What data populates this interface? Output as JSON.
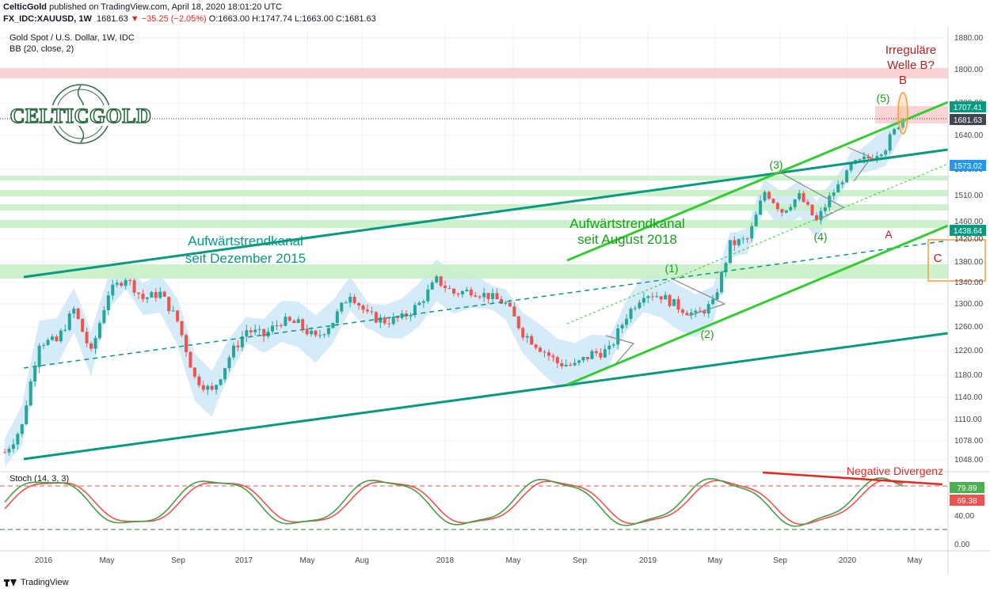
{
  "header": {
    "publisher": "CelticGold",
    "published_on": "published on TradingView.com, April 18, 2020 18:01:20 UTC",
    "symbol": "FX_IDC:XAUUSD, 1W",
    "last": "1681.63",
    "change": "▼ −35.25 (−2.05%)",
    "ohlc": "O:1663.00 H:1747.74 L:1663.00 C:1681.63"
  },
  "legend": {
    "title": "Gold Spot / U.S. Dollar, 1W, IDC",
    "bb": "BB (20, close, 2)",
    "stoch": "Stoch (14, 3, 3)"
  },
  "logo": {
    "text": "CELTICGOLD"
  },
  "colors": {
    "up": "#26a69a",
    "down": "#ef5350",
    "trend_teal": "#089981",
    "trend_green": "#33cc33",
    "bb_fill": "#cfe7f7",
    "wave": "#1b9e1b",
    "stoch_k": "#43a047",
    "stoch_d": "#ef5350",
    "highlight_orange": "#f59d3a"
  },
  "annotations": {
    "channel1_line1": "Aufwärtstrendkanal",
    "channel1_line2": "seit Dezember 2015",
    "channel2_line1": "Aufwärtstrendkanal",
    "channel2_line2": "seit August 2018",
    "wave1": "(1)",
    "wave2": "(2)",
    "wave3": "(3)",
    "wave4": "(4)",
    "wave5": "(5)",
    "waveA": "A",
    "waveB": "B",
    "waveC": "C",
    "irregular1": "Irreguläre",
    "irregular2": "Welle B?",
    "divergence": "Negative Divergenz"
  },
  "price_tags": {
    "p1": "1707.41",
    "p2": "1681.63",
    "p3": "1573.02",
    "p4": "1438.64"
  },
  "stoch_tags": {
    "k": "79.89",
    "d": "69.38"
  },
  "footer": {
    "brand": "TradingView"
  },
  "chart_data": {
    "type": "candlestick",
    "title": "Gold Spot / U.S. Dollar, 1W, IDC",
    "y_ticks": [
      "1880.00",
      "1800.00",
      "1720.00",
      "1640.00",
      "1580.00",
      "1510.00",
      "1460.00",
      "1420.00",
      "1380.00",
      "1340.00",
      "1300.00",
      "1260.00",
      "1220.00",
      "1180.00",
      "1140.00",
      "1110.00",
      "1078.00",
      "1048.00"
    ],
    "x_ticks": [
      "2016",
      "May",
      "Sep",
      "2017",
      "May",
      "Aug",
      "2018",
      "May",
      "Sep",
      "2019",
      "May",
      "Sep",
      "2020",
      "May"
    ],
    "stoch_ticks": [
      "80.00",
      "40.00",
      "0.00"
    ],
    "close_series": {
      "x": [
        "2015-12",
        "2016-01",
        "2016-02",
        "2016-03",
        "2016-04",
        "2016-05",
        "2016-06",
        "2016-07",
        "2016-08",
        "2016-09",
        "2016-10",
        "2016-11",
        "2016-12",
        "2017-01",
        "2017-02",
        "2017-03",
        "2017-04",
        "2017-05",
        "2017-06",
        "2017-07",
        "2017-08",
        "2017-09",
        "2017-10",
        "2017-11",
        "2017-12",
        "2018-01",
        "2018-02",
        "2018-03",
        "2018-04",
        "2018-05",
        "2018-06",
        "2018-07",
        "2018-08",
        "2018-09",
        "2018-10",
        "2018-11",
        "2018-12",
        "2019-01",
        "2019-02",
        "2019-03",
        "2019-04",
        "2019-05",
        "2019-06",
        "2019-07",
        "2019-08",
        "2019-09",
        "2019-10",
        "2019-11",
        "2019-12",
        "2020-01",
        "2020-02",
        "2020-03",
        "2020-04"
      ],
      "y": [
        1060,
        1100,
        1235,
        1235,
        1290,
        1215,
        1320,
        1350,
        1310,
        1320,
        1270,
        1175,
        1150,
        1210,
        1255,
        1245,
        1270,
        1265,
        1240,
        1270,
        1320,
        1280,
        1270,
        1275,
        1300,
        1345,
        1320,
        1325,
        1315,
        1300,
        1250,
        1225,
        1200,
        1195,
        1215,
        1220,
        1280,
        1320,
        1315,
        1295,
        1280,
        1300,
        1410,
        1420,
        1520,
        1480,
        1510,
        1460,
        1520,
        1585,
        1600,
        1620,
        1681.63
      ]
    },
    "stoch_k_last": 79.89,
    "stoch_d_last": 69.38
  }
}
